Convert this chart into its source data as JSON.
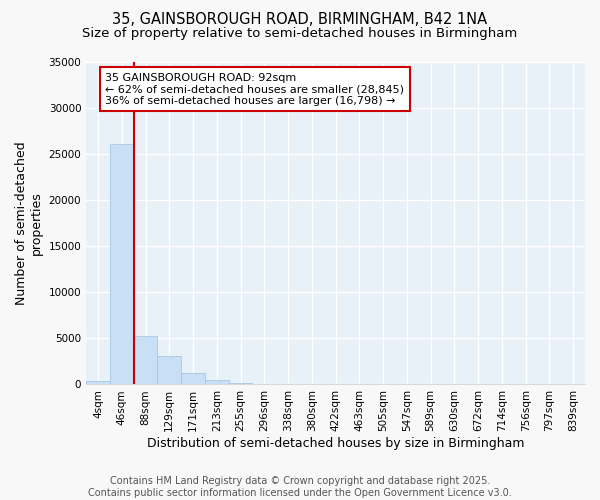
{
  "title_line1": "35, GAINSBOROUGH ROAD, BIRMINGHAM, B42 1NA",
  "title_line2": "Size of property relative to semi-detached houses in Birmingham",
  "xlabel": "Distribution of semi-detached houses by size in Birmingham",
  "ylabel": "Number of semi-detached\nproperties",
  "categories": [
    "4sqm",
    "46sqm",
    "88sqm",
    "129sqm",
    "171sqm",
    "213sqm",
    "255sqm",
    "296sqm",
    "338sqm",
    "380sqm",
    "422sqm",
    "463sqm",
    "505sqm",
    "547sqm",
    "589sqm",
    "630sqm",
    "672sqm",
    "714sqm",
    "756sqm",
    "797sqm",
    "839sqm"
  ],
  "values": [
    400,
    26100,
    5200,
    3100,
    1200,
    500,
    200,
    50,
    0,
    0,
    0,
    0,
    0,
    0,
    0,
    0,
    0,
    0,
    0,
    0,
    0
  ],
  "bar_color": "#c8dff5",
  "bar_edge_color": "#a0c0e0",
  "property_line_color": "#cc0000",
  "annotation_text": "35 GAINSBOROUGH ROAD: 92sqm\n← 62% of semi-detached houses are smaller (28,845)\n36% of semi-detached houses are larger (16,798) →",
  "annotation_box_color": "#ffffff",
  "annotation_box_edge": "#cc0000",
  "ylim": [
    0,
    35000
  ],
  "yticks": [
    0,
    5000,
    10000,
    15000,
    20000,
    25000,
    30000,
    35000
  ],
  "plot_bg_color": "#e8f0f8",
  "fig_bg_color": "#f8f8f8",
  "grid_color": "#ffffff",
  "footer": "Contains HM Land Registry data © Crown copyright and database right 2025.\nContains public sector information licensed under the Open Government Licence v3.0.",
  "title_fontsize": 10.5,
  "subtitle_fontsize": 9.5,
  "axis_label_fontsize": 9,
  "tick_fontsize": 7.5,
  "annotation_fontsize": 8,
  "footer_fontsize": 7
}
